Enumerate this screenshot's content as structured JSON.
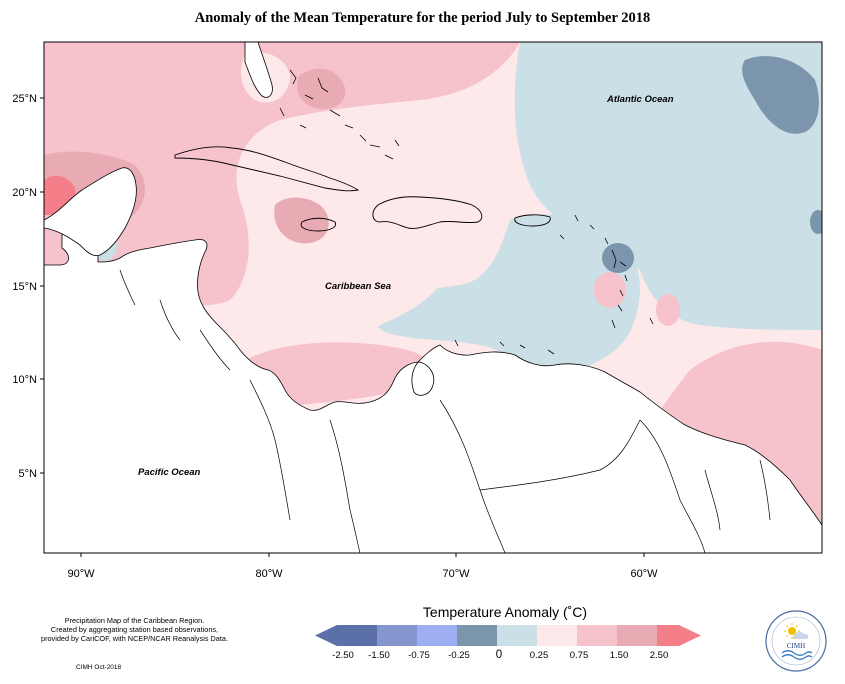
{
  "title": "Anomaly of the Mean Temperature for the period July to September 2018",
  "map": {
    "lat_labels": [
      "25°N",
      "20°N",
      "15°N",
      "10°N",
      "5°N"
    ],
    "lon_labels": [
      "90°W",
      "80°W",
      "70°W",
      "60°W"
    ],
    "ocean_labels": {
      "atlantic": "Atlantic Ocean",
      "caribbean": "Caribbean Sea",
      "pacific": "Pacific Ocean"
    },
    "region": "Caribbean",
    "lat_range": [
      0.5,
      28.0
    ],
    "lon_range": [
      -92.0,
      -51.5
    ]
  },
  "legend": {
    "title": "Temperature Anomaly (˚C)",
    "ticks": [
      "-2.50",
      "-1.50",
      "-0.75",
      "-0.25",
      "0",
      "0.25",
      "0.75",
      "1.50",
      "2.50"
    ],
    "bins": [
      {
        "color": "#5b6fa8"
      },
      {
        "color": "#8596cf"
      },
      {
        "color": "#9eaef2"
      },
      {
        "color": "#7b95ad"
      },
      {
        "color": "#cadfe6"
      },
      {
        "color": "#fde8ea"
      },
      {
        "color": "#f6c2cb"
      },
      {
        "color": "#e9abb3"
      },
      {
        "color": "#f57f89"
      }
    ]
  },
  "credits": {
    "line1": "Precipitation Map of the Caribbean Region.",
    "line2": "Created by aggregating station based observations,",
    "line3": "provided by CariCOF, with NCEP/NCAR Reanalysis Data.",
    "date": "CIMH Oct-2018"
  },
  "logo": {
    "acronym": "CIMH",
    "icon": "sun-cloud-wave-icon"
  },
  "colors": {
    "neutral": "#fde8ea",
    "warm_light": "#f6c2cb",
    "warm_mid": "#e9abb3",
    "warm_strong": "#f57f89",
    "cool_light": "#cadfe6",
    "cool_mid": "#7b95ad"
  }
}
